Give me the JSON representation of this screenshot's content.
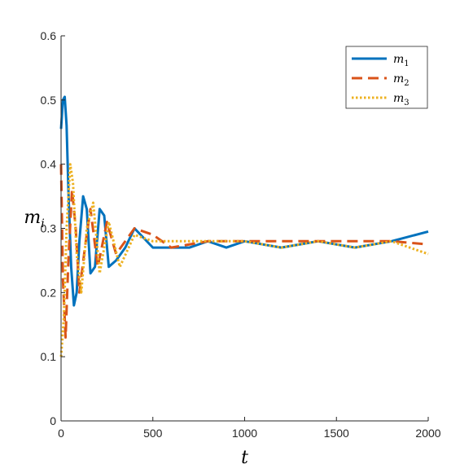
{
  "chart_data": {
    "type": "line",
    "xlabel": "t",
    "ylabel": "m",
    "ylabel_subscript": "i",
    "xlim": [
      0,
      2000
    ],
    "ylim": [
      0,
      0.6
    ],
    "xticks": [
      0,
      500,
      1000,
      1500,
      2000
    ],
    "xtick_labels": [
      "0",
      "500",
      "1000",
      "1500",
      "2000"
    ],
    "yticks": [
      0,
      0.1,
      0.2,
      0.3,
      0.4,
      0.5,
      0.6
    ],
    "ytick_labels": [
      "0",
      "0.1",
      "0.2",
      "0.3",
      "0.4",
      "0.5",
      "0.6"
    ],
    "grid": false,
    "legend_position": "top-right",
    "series": [
      {
        "name": "m",
        "name_subscript": "1",
        "color": "#0072BD",
        "line_style": "solid",
        "x": [
          0,
          10,
          20,
          30,
          40,
          55,
          70,
          85,
          100,
          120,
          140,
          160,
          185,
          210,
          235,
          260,
          300,
          350,
          400,
          500,
          600,
          700,
          800,
          900,
          1000,
          1200,
          1400,
          1600,
          1800,
          2000
        ],
        "values": [
          0.455,
          0.5,
          0.505,
          0.46,
          0.36,
          0.24,
          0.18,
          0.2,
          0.28,
          0.35,
          0.33,
          0.23,
          0.24,
          0.33,
          0.32,
          0.24,
          0.25,
          0.27,
          0.3,
          0.27,
          0.27,
          0.27,
          0.28,
          0.27,
          0.28,
          0.27,
          0.28,
          0.27,
          0.28,
          0.295
        ]
      },
      {
        "name": "m",
        "name_subscript": "2",
        "color": "#D95319",
        "line_style": "dashed",
        "x": [
          0,
          10,
          25,
          40,
          60,
          80,
          100,
          130,
          160,
          200,
          250,
          300,
          400,
          500,
          600,
          800,
          1000,
          1200,
          1400,
          1600,
          1800,
          2000
        ],
        "values": [
          0.4,
          0.22,
          0.13,
          0.25,
          0.36,
          0.3,
          0.2,
          0.27,
          0.33,
          0.24,
          0.31,
          0.26,
          0.3,
          0.29,
          0.27,
          0.28,
          0.28,
          0.28,
          0.28,
          0.28,
          0.28,
          0.275
        ]
      },
      {
        "name": "m",
        "name_subscript": "3",
        "color": "#EDB120",
        "line_style": "dotted",
        "x": [
          0,
          15,
          30,
          50,
          65,
          85,
          110,
          140,
          175,
          210,
          260,
          320,
          400,
          500,
          600,
          800,
          1000,
          1200,
          1400,
          1600,
          1800,
          2000
        ],
        "values": [
          0.1,
          0.16,
          0.3,
          0.4,
          0.37,
          0.26,
          0.2,
          0.3,
          0.34,
          0.23,
          0.31,
          0.24,
          0.29,
          0.28,
          0.28,
          0.28,
          0.28,
          0.27,
          0.28,
          0.27,
          0.28,
          0.26
        ]
      }
    ]
  }
}
